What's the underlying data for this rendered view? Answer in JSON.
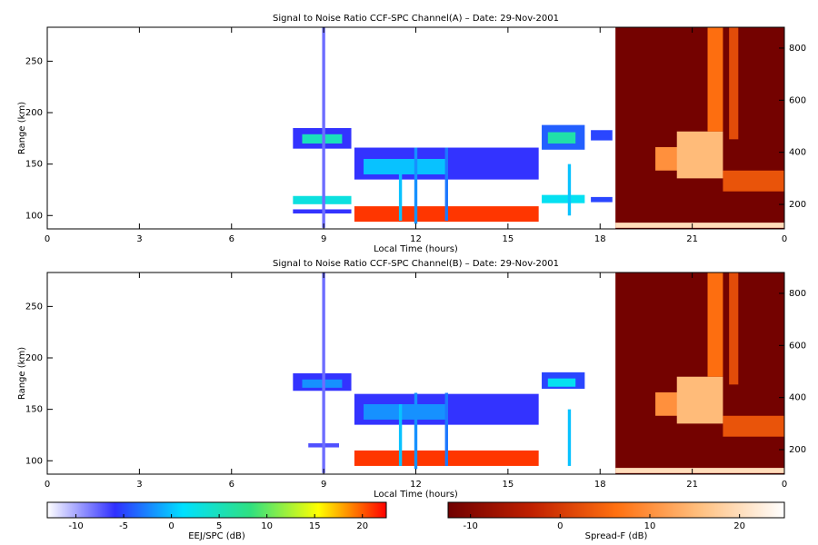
{
  "chart_data": [
    {
      "type": "rti",
      "title": "Signal to Noise Ratio CCF-SPC Channel(A) – Date: 29-Nov-2001",
      "xlabel": "Local Time (hours)",
      "ylabel": "Range (km)",
      "xlim": [
        0,
        24
      ],
      "xticks": [
        0,
        3,
        6,
        9,
        12,
        15,
        18,
        21,
        {
          "value": 24,
          "label": "0"
        }
      ],
      "ylim": [
        87,
        283
      ],
      "yticks": [
        100,
        150,
        200,
        250
      ],
      "y2lim": [
        106,
        880
      ],
      "y2ticks": [
        200,
        400,
        600,
        800
      ],
      "cells": [
        {
          "x": [
            8.0,
            9.9
          ],
          "range": [
            165,
            185
          ],
          "snr": -6
        },
        {
          "x": [
            8.3,
            9.6
          ],
          "range": [
            170,
            179
          ],
          "snr": 5
        },
        {
          "x": [
            8.0,
            9.9
          ],
          "range": [
            111,
            119
          ],
          "snr": 3
        },
        {
          "x": [
            8.0,
            9.9
          ],
          "range": [
            102,
            106
          ],
          "snr": -6
        },
        {
          "x": [
            10.0,
            16.0
          ],
          "range": [
            135,
            166
          ],
          "snr": -6
        },
        {
          "x": [
            10.3,
            13.0
          ],
          "range": [
            140,
            155
          ],
          "snr": 0
        },
        {
          "x": [
            10.0,
            16.0
          ],
          "range": [
            94,
            109
          ],
          "snr": 21
        },
        {
          "x": [
            16.1,
            17.5
          ],
          "range": [
            164,
            188
          ],
          "snr": -4
        },
        {
          "x": [
            16.3,
            17.2
          ],
          "range": [
            170,
            181
          ],
          "snr": 6
        },
        {
          "x": [
            16.1,
            17.5
          ],
          "range": [
            112,
            120
          ],
          "snr": 2
        },
        {
          "x": [
            17.7,
            18.4
          ],
          "range": [
            173,
            183
          ],
          "snr": -5
        },
        {
          "x": [
            17.7,
            18.4
          ],
          "range": [
            113,
            118
          ],
          "snr": -5
        },
        {
          "x": [
            8.95,
            9.05
          ],
          "range": [
            88,
            283
          ],
          "snr": -8
        },
        {
          "x": [
            11.45,
            11.55
          ],
          "range": [
            95,
            150
          ],
          "snr": 0
        },
        {
          "x": [
            11.95,
            12.05
          ],
          "range": [
            92,
            166
          ],
          "snr": -2
        },
        {
          "x": [
            12.95,
            13.05
          ],
          "range": [
            95,
            166
          ],
          "snr": -3
        },
        {
          "x": [
            16.95,
            17.05
          ],
          "range": [
            100,
            150
          ],
          "snr": 0
        }
      ],
      "spread_f": [
        {
          "x": [
            18.5,
            24
          ],
          "range": [
            106,
            880
          ],
          "snr": -12
        },
        {
          "x": [
            19.8,
            20.8
          ],
          "range": [
            330,
            420
          ],
          "snr": 10
        },
        {
          "x": [
            20.5,
            22.0
          ],
          "range": [
            300,
            480
          ],
          "snr": 15
        },
        {
          "x": [
            21.5,
            22.0
          ],
          "range": [
            480,
            880
          ],
          "snr": 6
        },
        {
          "x": [
            22.2,
            22.5
          ],
          "range": [
            450,
            880
          ],
          "snr": 2
        },
        {
          "x": [
            22.0,
            24.0
          ],
          "range": [
            250,
            330
          ],
          "snr": 3
        },
        {
          "x": [
            18.5,
            24.0
          ],
          "range": [
            110,
            130
          ],
          "snr": 20
        }
      ]
    },
    {
      "type": "rti",
      "title": "Signal to Noise Ratio CCF-SPC Channel(B) – Date: 29-Nov-2001",
      "xlabel": "Local Time (hours)",
      "ylabel": "Range (km)",
      "xlim": [
        0,
        24
      ],
      "xticks": [
        0,
        3,
        6,
        9,
        12,
        15,
        18,
        21,
        {
          "value": 24,
          "label": "0"
        }
      ],
      "ylim": [
        87,
        283
      ],
      "yticks": [
        100,
        150,
        200,
        250
      ],
      "y2lim": [
        106,
        880
      ],
      "y2ticks": [
        200,
        400,
        600,
        800
      ],
      "cells": [
        {
          "x": [
            8.0,
            9.9
          ],
          "range": [
            168,
            185
          ],
          "snr": -6
        },
        {
          "x": [
            8.3,
            9.6
          ],
          "range": [
            171,
            179
          ],
          "snr": -2
        },
        {
          "x": [
            8.5,
            9.5
          ],
          "range": [
            113,
            117
          ],
          "snr": -7
        },
        {
          "x": [
            10.0,
            16.0
          ],
          "range": [
            135,
            165
          ],
          "snr": -6
        },
        {
          "x": [
            10.3,
            13.0
          ],
          "range": [
            140,
            155
          ],
          "snr": -2
        },
        {
          "x": [
            10.0,
            16.0
          ],
          "range": [
            95,
            110
          ],
          "snr": 21
        },
        {
          "x": [
            16.1,
            17.5
          ],
          "range": [
            170,
            186
          ],
          "snr": -5
        },
        {
          "x": [
            16.3,
            17.2
          ],
          "range": [
            172,
            180
          ],
          "snr": 2
        },
        {
          "x": [
            8.95,
            9.05
          ],
          "range": [
            88,
            283
          ],
          "snr": -8
        },
        {
          "x": [
            11.45,
            11.55
          ],
          "range": [
            95,
            155
          ],
          "snr": 0
        },
        {
          "x": [
            11.95,
            12.05
          ],
          "range": [
            92,
            166
          ],
          "snr": -2
        },
        {
          "x": [
            12.95,
            13.05
          ],
          "range": [
            95,
            166
          ],
          "snr": -3
        },
        {
          "x": [
            16.95,
            17.05
          ],
          "range": [
            95,
            150
          ],
          "snr": 0
        }
      ],
      "spread_f": [
        {
          "x": [
            18.5,
            24
          ],
          "range": [
            106,
            880
          ],
          "snr": -12
        },
        {
          "x": [
            19.8,
            20.8
          ],
          "range": [
            330,
            420
          ],
          "snr": 10
        },
        {
          "x": [
            20.5,
            22.0
          ],
          "range": [
            300,
            480
          ],
          "snr": 15
        },
        {
          "x": [
            21.5,
            22.0
          ],
          "range": [
            480,
            880
          ],
          "snr": 6
        },
        {
          "x": [
            22.2,
            22.5
          ],
          "range": [
            450,
            880
          ],
          "snr": 2
        },
        {
          "x": [
            22.0,
            24.0
          ],
          "range": [
            250,
            330
          ],
          "snr": 3
        },
        {
          "x": [
            18.5,
            24.0
          ],
          "range": [
            110,
            130
          ],
          "snr": 20
        }
      ]
    },
    {
      "type": "colorbar",
      "label": "EEJ/SPC (dB)",
      "lim": [
        -13,
        22.5
      ],
      "ticks": [
        -10,
        -5,
        0,
        5,
        10,
        15,
        20
      ],
      "colors": [
        "#ffffff",
        "#3030ff",
        "#00e0ff",
        "#30e080",
        "#ffff00",
        "#ff0000"
      ]
    },
    {
      "type": "colorbar",
      "label": "Spread-F (dB)",
      "lim": [
        -12.5,
        25
      ],
      "ticks": [
        -10,
        0,
        10,
        20
      ],
      "colors": [
        "#700000",
        "#c02000",
        "#ff7010",
        "#ffc080",
        "#ffffff"
      ]
    }
  ]
}
